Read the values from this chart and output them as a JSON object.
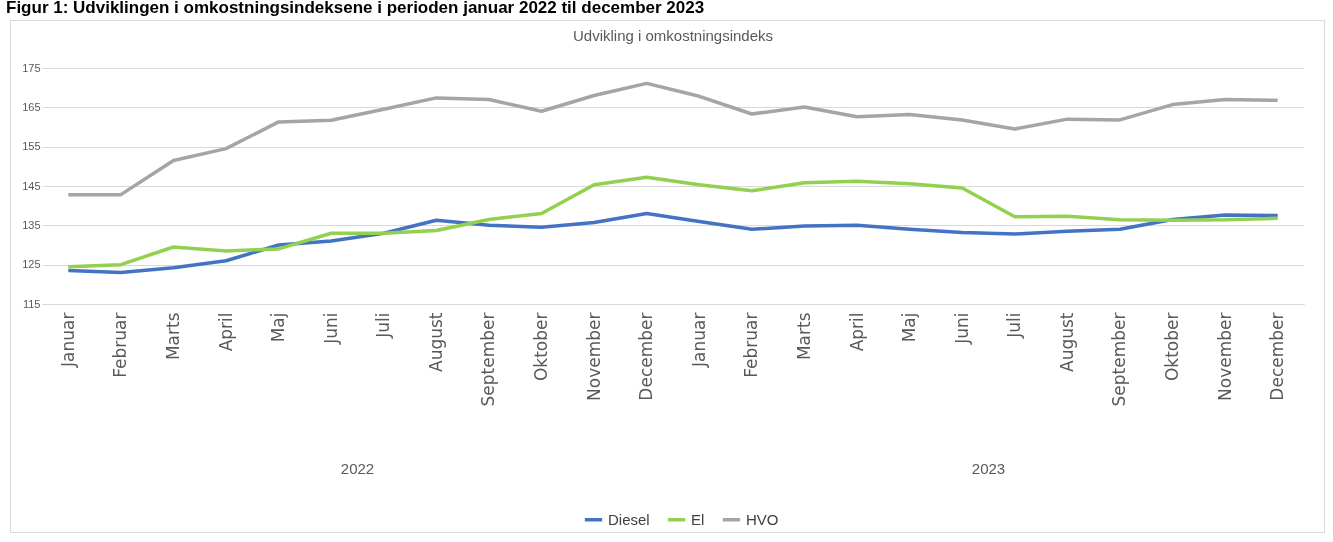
{
  "chart_data": {
    "type": "line",
    "title": "Figur 1: Udviklingen i omkostningsindeksene i perioden januar 2022 til december 2023",
    "subtitle": "Udvikling i omkostningsindeks",
    "categories": [
      "Januar",
      "Februar",
      "Marts",
      "April",
      "Maj",
      "Juni",
      "Juli",
      "August",
      "September",
      "Oktober",
      "November",
      "December",
      "Januar",
      "Februar",
      "Marts",
      "April",
      "Maj",
      "Juni",
      "Juli",
      "August",
      "September",
      "Oktober",
      "November",
      "December"
    ],
    "annotations": [
      "2022",
      "2023"
    ],
    "series": [
      {
        "name": "Diesel",
        "color": "#4472c4",
        "values": [
          123.5,
          123,
          124.2,
          126,
          130,
          131,
          133,
          136.3,
          135,
          134.5,
          135.7,
          138,
          136,
          134,
          134.8,
          135,
          134,
          133.2,
          132.8,
          133.5,
          134,
          136.5,
          137.6,
          137.5
        ]
      },
      {
        "name": "El",
        "color": "#92d050",
        "values": [
          124.5,
          125,
          129.5,
          128.5,
          129,
          133,
          133,
          133.7,
          136.5,
          138,
          145.3,
          147.2,
          145.3,
          143.8,
          145.8,
          146.2,
          145.6,
          144.5,
          137.2,
          137.3,
          136.4,
          136.3,
          136.4,
          136.8
        ]
      },
      {
        "name": "HVO",
        "color": "#a5a5a5",
        "values": [
          142.8,
          142.8,
          151.5,
          154.5,
          161.3,
          161.7,
          164.5,
          167.4,
          167,
          164,
          168,
          171.1,
          167.8,
          163.3,
          165.1,
          162.6,
          163.2,
          161.8,
          159.5,
          162,
          161.8,
          165.7,
          167,
          166.8
        ]
      }
    ],
    "ylim": [
      115,
      175
    ],
    "yticks": [
      115,
      125,
      135,
      145,
      155,
      165,
      175
    ],
    "grid": "y",
    "legend": "bottom",
    "marker": "none",
    "line_style": "solid"
  }
}
